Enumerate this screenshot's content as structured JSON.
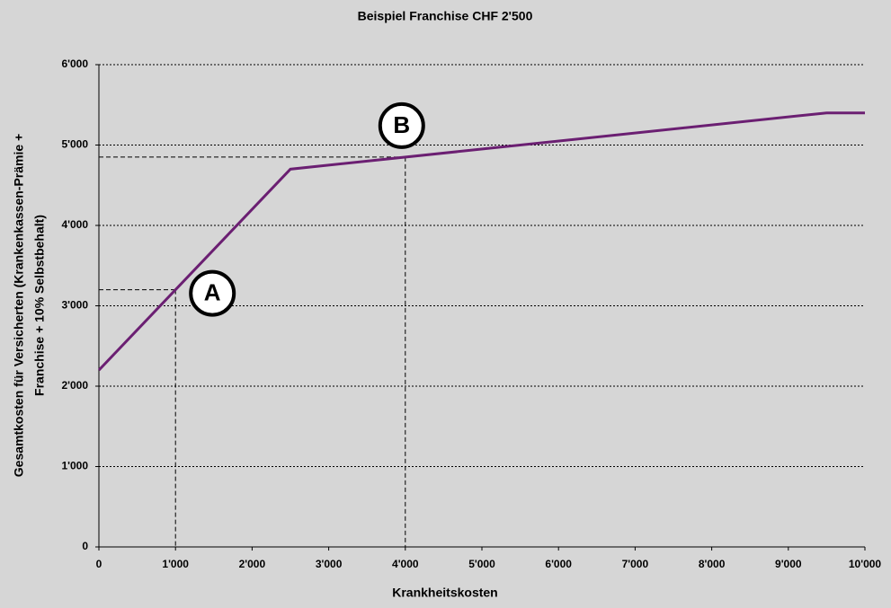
{
  "chart_data": {
    "type": "line",
    "title": "Beispiel Franchise CHF 2'500",
    "xlabel": "Krankheitskosten",
    "ylabel": [
      "Gesamtkosten für Versicherten (Krankenkassen-Prämie +",
      "Franchise + 10% Selbstbehalt)"
    ],
    "x": [
      0,
      2500,
      9500,
      10000
    ],
    "values": [
      2200,
      4700,
      5400,
      5400
    ],
    "color": "#6b1f72",
    "xlim": [
      0,
      10000
    ],
    "xticks": [
      0,
      {
        "value": 1000,
        "label": "1'000"
      },
      {
        "value": 2000,
        "label": "2'000"
      },
      {
        "value": 3000,
        "label": "3'000"
      },
      {
        "value": 4000,
        "label": "4'000"
      },
      {
        "value": 5000,
        "label": "5'000"
      },
      {
        "value": 6000,
        "label": "6'000"
      },
      {
        "value": 7000,
        "label": "7'000"
      },
      {
        "value": 8000,
        "label": "8'000"
      },
      {
        "value": 9000,
        "label": "9'000"
      },
      {
        "value": 10000,
        "label": "10'000"
      }
    ],
    "ylim": [
      0,
      6000
    ],
    "yticks": [
      0,
      {
        "value": 1000,
        "label": "1'000"
      },
      {
        "value": 2000,
        "label": "2'000"
      },
      {
        "value": 3000,
        "label": "3'000"
      },
      {
        "value": 4000,
        "label": "4'000"
      },
      {
        "value": 5000,
        "label": "5'000"
      },
      {
        "value": 6000,
        "label": "6'000"
      }
    ],
    "grid": true,
    "annotations": [
      {
        "label": "A",
        "x": 1000,
        "y": 3200
      },
      {
        "label": "B",
        "x": 4000,
        "y": 4850
      }
    ]
  }
}
